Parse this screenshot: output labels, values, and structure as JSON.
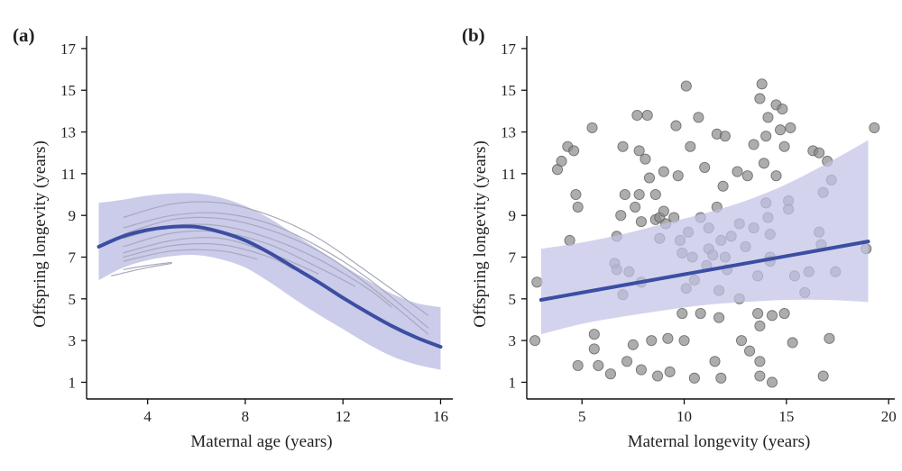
{
  "chart_data": [
    {
      "panel": "(a)",
      "type": "line",
      "xlabel": "Maternal age (years)",
      "ylabel": "Offspring longevity (years)",
      "xlim": [
        1.5,
        16.5
      ],
      "ylim": [
        0.2,
        17.6
      ],
      "xticks": [
        4,
        8,
        12,
        16
      ],
      "yticks": [
        1,
        3,
        5,
        7,
        9,
        11,
        13,
        15,
        17
      ],
      "colors": {
        "main": "#3b4ea3",
        "band": "#c2c2e6",
        "individual": "#a9a9bc",
        "axis": "#111111"
      },
      "main_series": {
        "name": "population fit",
        "x": [
          2,
          3,
          4,
          5,
          6,
          7,
          8,
          9,
          10,
          11,
          12,
          13,
          14,
          15,
          16
        ],
        "y": [
          7.5,
          8.0,
          8.3,
          8.45,
          8.45,
          8.2,
          7.8,
          7.2,
          6.5,
          5.8,
          5.05,
          4.35,
          3.7,
          3.15,
          2.7
        ]
      },
      "confidence_band": {
        "x": [
          2,
          3,
          4,
          5,
          6,
          7,
          8,
          9,
          10,
          11,
          12,
          13,
          14,
          15,
          16
        ],
        "upper": [
          9.6,
          9.75,
          9.95,
          10.05,
          10.05,
          9.85,
          9.45,
          8.85,
          8.1,
          7.35,
          6.6,
          5.9,
          5.25,
          4.8,
          4.6
        ],
        "lower": [
          5.9,
          6.5,
          6.85,
          7.05,
          7.1,
          6.9,
          6.5,
          5.8,
          5.0,
          4.25,
          3.55,
          2.85,
          2.25,
          1.85,
          1.6
        ]
      },
      "individual_curves": [
        {
          "x": [
            3,
            5,
            7,
            9,
            11,
            13,
            15.5
          ],
          "y": [
            8.9,
            9.55,
            9.6,
            9.0,
            7.9,
            6.3,
            4.2
          ]
        },
        {
          "x": [
            3,
            5,
            7,
            9,
            11,
            13,
            15.5
          ],
          "y": [
            8.4,
            9.0,
            9.1,
            8.6,
            7.5,
            6.0,
            3.6
          ]
        },
        {
          "x": [
            3,
            5,
            7,
            9,
            11,
            13,
            15.5
          ],
          "y": [
            8.1,
            8.8,
            8.85,
            8.3,
            7.3,
            5.7,
            3.3
          ]
        },
        {
          "x": [
            3,
            5,
            7,
            9,
            11,
            13,
            14
          ],
          "y": [
            7.9,
            8.5,
            8.5,
            7.9,
            6.9,
            5.5,
            4.6
          ]
        },
        {
          "x": [
            3,
            5,
            7,
            9,
            11,
            12.5
          ],
          "y": [
            7.5,
            8.15,
            8.2,
            7.6,
            6.5,
            5.6
          ]
        },
        {
          "x": [
            3,
            5,
            7,
            9,
            11
          ],
          "y": [
            7.2,
            7.8,
            7.9,
            7.2,
            6.2
          ]
        },
        {
          "x": [
            3,
            5,
            7,
            9,
            10
          ],
          "y": [
            7.0,
            7.55,
            7.6,
            7.0,
            6.4
          ]
        },
        {
          "x": [
            3,
            5,
            7,
            8.5
          ],
          "y": [
            6.8,
            7.3,
            7.3,
            6.9
          ]
        },
        {
          "x": [
            3,
            4,
            5
          ],
          "y": [
            6.4,
            6.6,
            6.75
          ]
        },
        {
          "x": [
            2.5,
            4,
            5
          ],
          "y": [
            6.1,
            6.5,
            6.7
          ]
        }
      ]
    },
    {
      "panel": "(b)",
      "type": "scatter",
      "xlabel": "Maternal longevity (years)",
      "ylabel": "Offspring longevity (years)",
      "xlim": [
        2.3,
        20.3
      ],
      "ylim": [
        0.2,
        17.6
      ],
      "xticks": [
        5,
        10,
        15,
        20
      ],
      "yticks": [
        1,
        3,
        5,
        7,
        9,
        11,
        13,
        15,
        17
      ],
      "colors": {
        "line": "#3b4ea3",
        "band": "#c2c2e6",
        "points": "#8a8a8a",
        "axis": "#111111"
      },
      "regression_line": {
        "x": [
          3,
          19
        ],
        "y": [
          4.95,
          7.75
        ]
      },
      "confidence_band": {
        "x": [
          3,
          5,
          7,
          9,
          11,
          13,
          15,
          17,
          19
        ],
        "upper": [
          7.4,
          7.7,
          8.1,
          8.6,
          9.1,
          9.7,
          10.5,
          11.5,
          12.6
        ],
        "lower": [
          3.3,
          3.8,
          4.15,
          4.45,
          4.7,
          4.85,
          4.95,
          4.95,
          4.85
        ]
      },
      "points": [
        [
          2.8,
          5.8
        ],
        [
          2.7,
          3.0
        ],
        [
          3.8,
          11.2
        ],
        [
          4.0,
          11.6
        ],
        [
          4.3,
          12.3
        ],
        [
          4.6,
          12.1
        ],
        [
          4.7,
          10.0
        ],
        [
          4.8,
          9.4
        ],
        [
          4.8,
          1.8
        ],
        [
          4.4,
          7.8
        ],
        [
          5.5,
          13.2
        ],
        [
          5.6,
          3.3
        ],
        [
          5.6,
          2.6
        ],
        [
          5.8,
          1.8
        ],
        [
          6.4,
          1.4
        ],
        [
          6.6,
          6.7
        ],
        [
          6.7,
          6.4
        ],
        [
          6.7,
          8.0
        ],
        [
          6.9,
          9.0
        ],
        [
          7.0,
          5.2
        ],
        [
          7.0,
          12.3
        ],
        [
          7.1,
          10.0
        ],
        [
          7.3,
          6.3
        ],
        [
          7.2,
          2.0
        ],
        [
          7.5,
          2.8
        ],
        [
          7.6,
          9.4
        ],
        [
          7.7,
          13.8
        ],
        [
          7.8,
          12.1
        ],
        [
          7.8,
          10.0
        ],
        [
          7.9,
          8.7
        ],
        [
          7.9,
          5.8
        ],
        [
          7.9,
          1.6
        ],
        [
          8.2,
          13.8
        ],
        [
          8.1,
          11.7
        ],
        [
          8.3,
          10.8
        ],
        [
          8.4,
          3.0
        ],
        [
          8.6,
          10.0
        ],
        [
          8.6,
          8.8
        ],
        [
          8.7,
          1.3
        ],
        [
          8.8,
          7.9
        ],
        [
          8.8,
          8.9
        ],
        [
          9.0,
          11.1
        ],
        [
          9.0,
          9.2
        ],
        [
          9.1,
          8.6
        ],
        [
          9.2,
          3.1
        ],
        [
          9.3,
          1.5
        ],
        [
          9.5,
          8.9
        ],
        [
          9.6,
          13.3
        ],
        [
          9.7,
          10.9
        ],
        [
          9.8,
          7.8
        ],
        [
          9.9,
          7.2
        ],
        [
          9.9,
          4.3
        ],
        [
          10.0,
          3.0
        ],
        [
          10.1,
          15.2
        ],
        [
          10.1,
          5.5
        ],
        [
          10.2,
          8.2
        ],
        [
          10.3,
          12.3
        ],
        [
          10.4,
          7.0
        ],
        [
          10.5,
          5.9
        ],
        [
          10.5,
          1.2
        ],
        [
          10.7,
          13.7
        ],
        [
          10.8,
          4.3
        ],
        [
          10.8,
          8.9
        ],
        [
          11.0,
          11.3
        ],
        [
          11.1,
          6.6
        ],
        [
          11.2,
          7.4
        ],
        [
          11.2,
          8.4
        ],
        [
          11.4,
          7.1
        ],
        [
          11.5,
          2.0
        ],
        [
          11.6,
          12.9
        ],
        [
          11.6,
          9.4
        ],
        [
          11.7,
          5.4
        ],
        [
          11.7,
          4.1
        ],
        [
          11.8,
          7.8
        ],
        [
          11.8,
          1.2
        ],
        [
          11.9,
          10.4
        ],
        [
          12.0,
          12.8
        ],
        [
          12.0,
          7.0
        ],
        [
          12.1,
          6.4
        ],
        [
          12.3,
          8.0
        ],
        [
          12.6,
          11.1
        ],
        [
          12.7,
          8.6
        ],
        [
          12.7,
          5.0
        ],
        [
          12.8,
          3.0
        ],
        [
          13.0,
          7.5
        ],
        [
          13.1,
          10.9
        ],
        [
          13.2,
          2.5
        ],
        [
          13.4,
          8.4
        ],
        [
          13.4,
          12.4
        ],
        [
          13.6,
          4.3
        ],
        [
          13.6,
          6.1
        ],
        [
          13.7,
          3.7
        ],
        [
          13.7,
          2.0
        ],
        [
          13.7,
          1.3
        ],
        [
          13.7,
          14.6
        ],
        [
          13.8,
          15.3
        ],
        [
          13.9,
          11.5
        ],
        [
          14.0,
          12.8
        ],
        [
          14.0,
          9.6
        ],
        [
          14.1,
          13.7
        ],
        [
          14.1,
          8.9
        ],
        [
          14.2,
          8.1
        ],
        [
          14.2,
          7.0
        ],
        [
          14.2,
          6.8
        ],
        [
          14.3,
          1.0
        ],
        [
          14.3,
          4.2
        ],
        [
          14.5,
          14.3
        ],
        [
          14.5,
          10.9
        ],
        [
          14.7,
          13.1
        ],
        [
          14.8,
          14.1
        ],
        [
          14.9,
          12.3
        ],
        [
          14.9,
          4.3
        ],
        [
          15.1,
          9.7
        ],
        [
          15.1,
          9.3
        ],
        [
          15.2,
          13.2
        ],
        [
          15.3,
          2.9
        ],
        [
          15.4,
          6.1
        ],
        [
          15.9,
          5.3
        ],
        [
          16.1,
          6.3
        ],
        [
          16.3,
          12.1
        ],
        [
          16.6,
          12.0
        ],
        [
          16.6,
          8.2
        ],
        [
          16.7,
          7.6
        ],
        [
          16.8,
          1.3
        ],
        [
          16.8,
          10.1
        ],
        [
          17.0,
          11.6
        ],
        [
          17.1,
          3.1
        ],
        [
          17.2,
          10.7
        ],
        [
          17.4,
          6.3
        ],
        [
          18.9,
          7.4
        ],
        [
          19.3,
          13.2
        ]
      ]
    }
  ]
}
